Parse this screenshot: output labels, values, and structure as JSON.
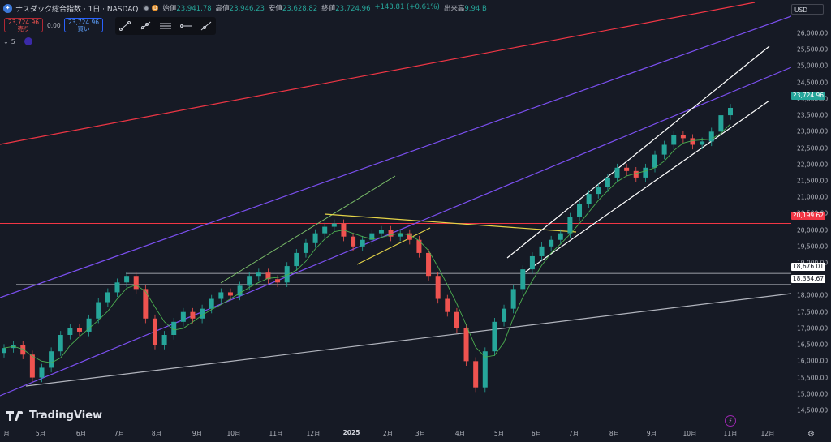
{
  "header": {
    "title": "ナスダック総合指数 · 1日 · NASDAQ",
    "ohlc": [
      {
        "label": "始値",
        "value": "23,941.78"
      },
      {
        "label": "高値",
        "value": "23,946.23"
      },
      {
        "label": "安値",
        "value": "23,628.82"
      },
      {
        "label": "終値",
        "value": "23,724.96"
      },
      {
        "label": "",
        "value": "+143.81 (+0.61%)"
      },
      {
        "label": "出来高",
        "value": "9.94 B"
      }
    ]
  },
  "trade": {
    "sell_price": "23,724.96",
    "sell_label": "売り",
    "spread": "0.00",
    "buy_price": "23,724.96",
    "buy_label": "買い"
  },
  "indicator": {
    "count": "5"
  },
  "currency": "USD",
  "y_axis": [
    "26,000.00",
    "25,500.00",
    "25,000.00",
    "24,500.00",
    "24,000.00",
    "23,500.00",
    "23,000.00",
    "22,500.00",
    "22,000.00",
    "21,500.00",
    "21,000.00",
    "20,500.00",
    "20,000.00",
    "19,500.00",
    "19,000.00",
    "18,000.00",
    "17,500.00",
    "17,000.00",
    "16,500.00",
    "16,000.00",
    "15,500.00",
    "15,000.00",
    "14,500.00"
  ],
  "price_tags": {
    "current": "23,724.96",
    "red_line": "20,199.62",
    "level1": "18,676.01",
    "level2": "18,334.67"
  },
  "x_axis": [
    "月",
    "5月",
    "6月",
    "7月",
    "8月",
    "9月",
    "10月",
    "11月",
    "12月",
    "2025",
    "2月",
    "3月",
    "4月",
    "5月",
    "6月",
    "7月",
    "8月",
    "9月",
    "10月",
    "11月",
    "12月"
  ],
  "brand": "TradingView",
  "colors": {
    "up": "#26a69a",
    "down": "#ef5350",
    "bg": "#161a25",
    "red_line": "#f23645",
    "purple": "#7b4ff0",
    "yellow": "#e5d448",
    "green": "#7cc06a"
  },
  "chart_data": {
    "type": "candlestick",
    "title": "ナスダック総合指数 · 1日 · NASDAQ",
    "ylim": [
      14300,
      26300
    ],
    "y_ticks": [
      26000,
      25500,
      25000,
      24500,
      24000,
      23500,
      23000,
      22500,
      22000,
      21500,
      21000,
      20500,
      20000,
      19500,
      19000,
      18000,
      17500,
      17000,
      16500,
      16000,
      15500,
      15000,
      14500
    ],
    "x_ticks": [
      "月",
      "5月",
      "6月",
      "7月",
      "8月",
      "9月",
      "10月",
      "11月",
      "12月",
      "2025",
      "2月",
      "3月",
      "4月",
      "5月",
      "6月",
      "7月",
      "8月",
      "9月",
      "10月",
      "11月",
      "12月"
    ],
    "horizontal_levels": [
      20199.62,
      18676.01,
      18334.67
    ],
    "last_close": 23724.96,
    "closes": [
      16400,
      16500,
      16200,
      15500,
      15800,
      16300,
      16800,
      17000,
      16900,
      17300,
      17800,
      18100,
      18400,
      18600,
      18200,
      17300,
      16500,
      16800,
      17200,
      17500,
      17300,
      17600,
      17900,
      18100,
      18000,
      18300,
      18600,
      18700,
      18500,
      18400,
      18900,
      19300,
      19600,
      19900,
      20100,
      20200,
      19800,
      19500,
      19700,
      19900,
      20000,
      19800,
      19900,
      19700,
      19300,
      18600,
      17900,
      17500,
      17000,
      16000,
      15200,
      16300,
      17200,
      17600,
      18200,
      18800,
      19200,
      19500,
      19700,
      19900,
      20400,
      20800,
      21100,
      21300,
      21600,
      21900,
      21800,
      21600,
      21900,
      22300,
      22600,
      22900,
      22800,
      22600,
      22700,
      23000,
      23500,
      23724.96
    ]
  }
}
